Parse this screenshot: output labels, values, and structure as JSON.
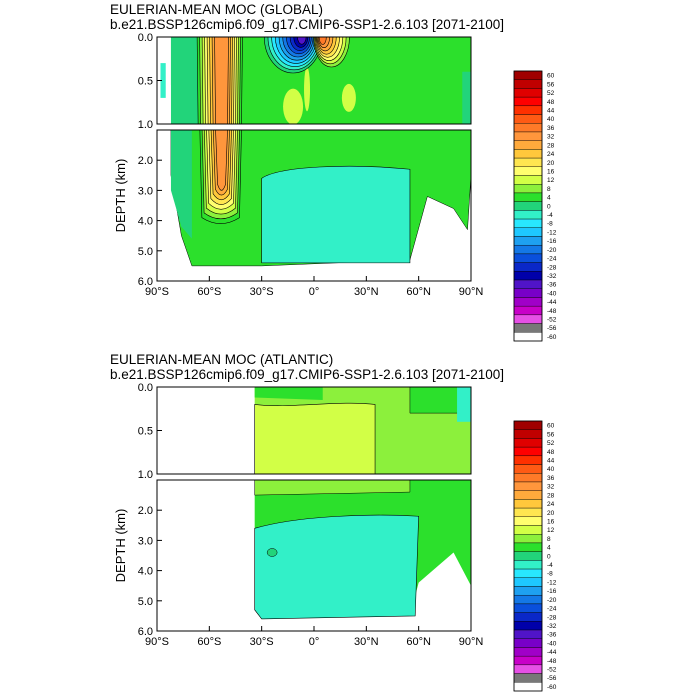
{
  "chart_data": [
    {
      "type": "heatmap",
      "title": "EULERIAN-MEAN MOC (GLOBAL)",
      "subtitle": "b.e21.BSSP126cmip6.f09_g17.CMIP6-SSP1-2.6.103 [2071-2100]",
      "xlabel": "",
      "ylabel": "DEPTH (km)",
      "xlim": [
        -90,
        90
      ],
      "ylim": [
        0,
        6
      ],
      "x_ticks": [
        "90°S",
        "60°S",
        "30°S",
        "0°",
        "30°N",
        "60°N",
        "90°N"
      ],
      "y_ticks_upper": [
        "0.0",
        "0.5",
        "1.0"
      ],
      "y_ticks_lower": [
        "2.0",
        "3.0",
        "4.0",
        "5.0",
        "6.0"
      ],
      "levels": [
        "60",
        "56",
        "52",
        "48",
        "44",
        "40",
        "36",
        "32",
        "28",
        "24",
        "20",
        "16",
        "12",
        "8",
        "4",
        "0",
        "-4",
        "-8",
        "-12",
        "-16",
        "-20",
        "-24",
        "-28",
        "-32",
        "-36",
        "-40",
        "-44",
        "-48",
        "-52",
        "-56",
        "-60"
      ],
      "features": [
        {
          "kind": "cell",
          "lat": [
            -67,
            -40
          ],
          "depth": [
            0.0,
            3.9
          ],
          "peak": 32
        },
        {
          "kind": "cell",
          "lat": [
            -35,
            -2
          ],
          "depth": [
            0.0,
            0.4
          ],
          "peak": -40
        },
        {
          "kind": "cell",
          "lat": [
            0,
            25
          ],
          "depth": [
            0.0,
            0.35
          ],
          "peak": 36
        },
        {
          "kind": "cell",
          "lat": [
            -30,
            55
          ],
          "depth": [
            2.3,
            5.4
          ],
          "peak": -8
        }
      ]
    },
    {
      "type": "heatmap",
      "title": "EULERIAN-MEAN MOC (ATLANTIC)",
      "subtitle": "b.e21.BSSP126cmip6.f09_g17.CMIP6-SSP1-2.6.103 [2071-2100]",
      "xlabel": "",
      "ylabel": "DEPTH (km)",
      "xlim": [
        -90,
        90
      ],
      "ylim": [
        0,
        6
      ],
      "x_ticks": [
        "90°S",
        "60°S",
        "30°S",
        "0°",
        "30°N",
        "60°N",
        "90°N"
      ],
      "y_ticks_upper": [
        "0.0",
        "0.5",
        "1.0"
      ],
      "y_ticks_lower": [
        "2.0",
        "3.0",
        "4.0",
        "5.0",
        "6.0"
      ],
      "levels": [
        "60",
        "56",
        "52",
        "48",
        "44",
        "40",
        "36",
        "32",
        "28",
        "24",
        "20",
        "16",
        "12",
        "8",
        "4",
        "0",
        "-4",
        "-8",
        "-12",
        "-16",
        "-20",
        "-24",
        "-28",
        "-32",
        "-36",
        "-40",
        "-44",
        "-48",
        "-52",
        "-56",
        "-60"
      ],
      "features": [
        {
          "kind": "cell",
          "lat": [
            -34,
            60
          ],
          "depth": [
            0.0,
            2.2
          ],
          "peak": 12
        },
        {
          "kind": "cell",
          "lat": [
            -34,
            55
          ],
          "depth": [
            2.2,
            5.5
          ],
          "peak": -4
        }
      ]
    }
  ],
  "colors": {
    "palette": [
      "#a00000",
      "#c00000",
      "#e00000",
      "#ff0000",
      "#ff3000",
      "#ff5a14",
      "#ff7a28",
      "#ff963c",
      "#ffaa3c",
      "#ffc83c",
      "#ffe650",
      "#ffff6e",
      "#d2ff46",
      "#8cf03c",
      "#2ce02c",
      "#22d47a",
      "#32f0c8",
      "#28e8ff",
      "#1ec8ff",
      "#1ea0f0",
      "#1478e6",
      "#0a50dc",
      "#0a28c8",
      "#0000aa",
      "#5014c8",
      "#7800c8",
      "#a000c8",
      "#c800c8",
      "#e650e6",
      "#787878",
      "#ffffff"
    ]
  }
}
